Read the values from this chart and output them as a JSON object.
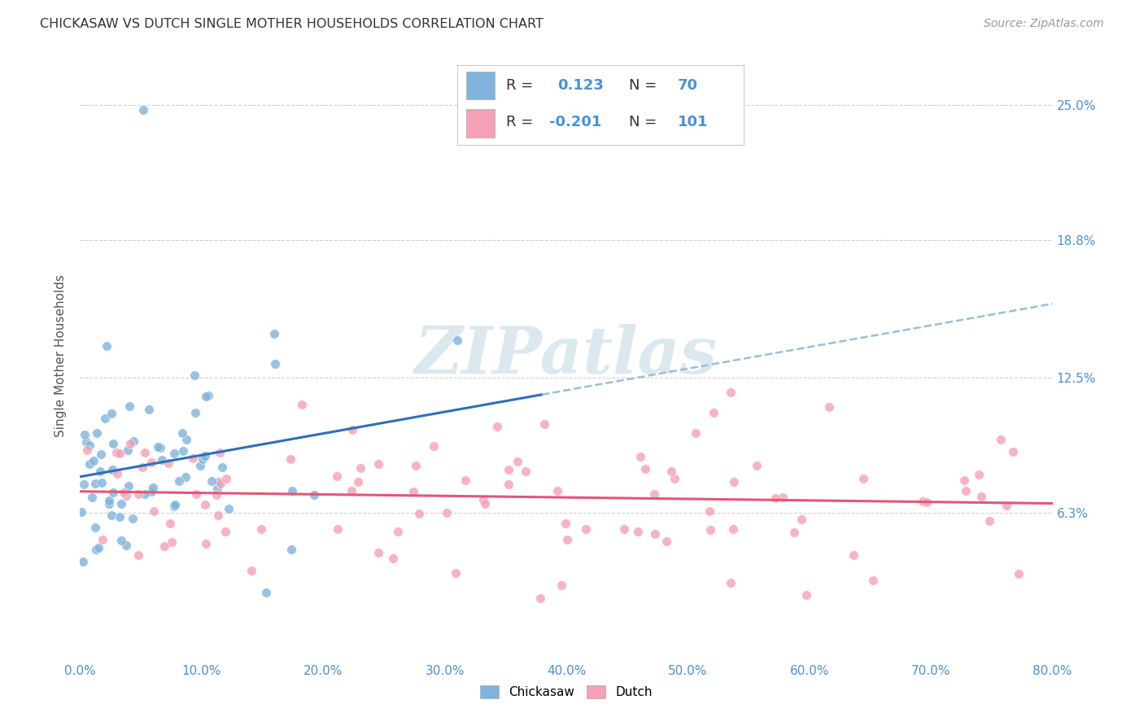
{
  "title": "CHICKASAW VS DUTCH SINGLE MOTHER HOUSEHOLDS CORRELATION CHART",
  "source": "Source: ZipAtlas.com",
  "ylabel": "Single Mother Households",
  "xlabel_ticks": [
    "0.0%",
    "10.0%",
    "20.0%",
    "30.0%",
    "40.0%",
    "50.0%",
    "60.0%",
    "70.0%",
    "80.0%"
  ],
  "ytick_labels": [
    "6.3%",
    "12.5%",
    "18.8%",
    "25.0%"
  ],
  "ytick_values": [
    0.063,
    0.125,
    0.188,
    0.25
  ],
  "xlim": [
    0.0,
    0.8
  ],
  "ylim": [
    -0.005,
    0.275
  ],
  "chickasaw_R": 0.123,
  "chickasaw_N": 70,
  "dutch_R": -0.201,
  "dutch_N": 101,
  "chickasaw_color": "#7fb3db",
  "dutch_color": "#f4a0b5",
  "chickasaw_line_color": "#2e6fba",
  "dutch_line_color": "#e05878",
  "dashed_color": "#9abfd8",
  "grid_color": "#d0d0d0",
  "watermark_color": "#dce8f0",
  "background_color": "#ffffff",
  "tick_label_color": "#4a90d9",
  "title_color": "#333333",
  "source_color": "#999999",
  "legend_R_color": "#333333",
  "legend_val_color": "#4a90d9",
  "legend_box_color": "#f0f0f0",
  "legend_border_color": "#cccccc"
}
